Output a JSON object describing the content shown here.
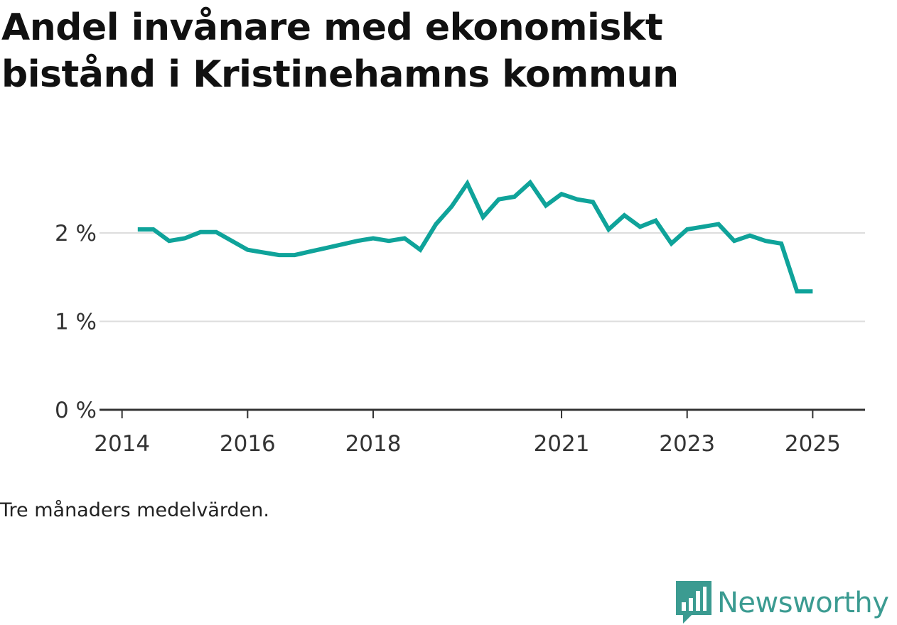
{
  "title": "Andel invånare med ekonomiskt bistånd i Kristinehamns kommun",
  "note": "Tre månaders medelvärden.",
  "brand": {
    "name": "Newsworthy",
    "logo_icon": "bar-chart-speech-bubble-icon",
    "color": "#3b9b91"
  },
  "chart_data": {
    "type": "line",
    "title": "Andel invånare med ekonomiskt bistånd i Kristinehamns kommun",
    "xlabel": "",
    "ylabel": "",
    "x_ticks": [
      "2014",
      "2016",
      "2018",
      "2021",
      "2023",
      "2025"
    ],
    "y_ticks": [
      "0 %",
      "1 %",
      "2 %"
    ],
    "ylim": [
      0,
      3
    ],
    "grid": true,
    "line_color": "#0fa39a",
    "series": [
      {
        "x": [
          "2014-04",
          "2014-07",
          "2014-10",
          "2015-01",
          "2015-04",
          "2015-07",
          "2015-10",
          "2016-01",
          "2016-04",
          "2016-07",
          "2016-10",
          "2017-01",
          "2017-04",
          "2017-07",
          "2017-10",
          "2018-01",
          "2018-04",
          "2018-07",
          "2018-10",
          "2019-01",
          "2019-04",
          "2019-07",
          "2019-10",
          "2020-01",
          "2020-04",
          "2020-07",
          "2020-10",
          "2021-01",
          "2021-04",
          "2021-07",
          "2021-10",
          "2022-01",
          "2022-04",
          "2022-07",
          "2022-10",
          "2023-01",
          "2023-04",
          "2023-07",
          "2023-10",
          "2024-01",
          "2024-04",
          "2024-07",
          "2024-10",
          "2025-01"
        ],
        "values": [
          2.04,
          2.04,
          1.91,
          1.94,
          2.01,
          2.01,
          1.91,
          1.81,
          1.78,
          1.75,
          1.75,
          1.79,
          1.83,
          1.87,
          1.91,
          1.94,
          1.91,
          1.94,
          1.81,
          2.1,
          2.3,
          2.56,
          2.18,
          2.38,
          2.41,
          2.57,
          2.31,
          2.44,
          2.38,
          2.35,
          2.04,
          2.2,
          2.07,
          2.14,
          1.88,
          2.04,
          2.07,
          2.1,
          1.91,
          1.97,
          1.91,
          1.88,
          1.34,
          1.34
        ]
      }
    ]
  }
}
